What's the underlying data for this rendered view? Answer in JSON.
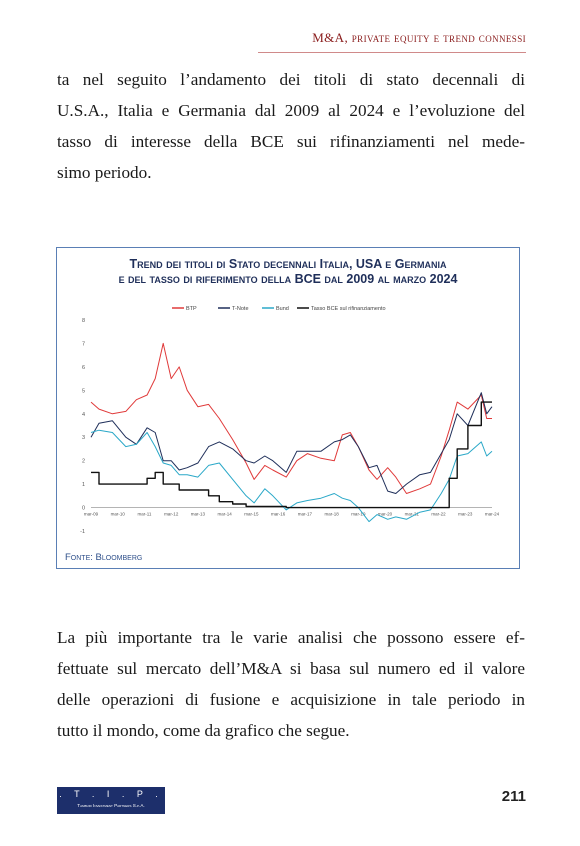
{
  "header": {
    "running_title": "M&A, private equity e trend connessi"
  },
  "paragraph_1": [
    "ta nel seguito l’andamento dei titoli di stato decennali di",
    "U.S.A., Italia e Germania dal 2009 al 2024 e l’evoluzione del",
    "tasso di interesse della BCE sui rifinanziamenti nel mede-",
    "simo periodo."
  ],
  "figure": {
    "title_line_1": "Trend dei titoli di Stato decennali Italia, USA e Germania",
    "title_line_2": "e del tasso di riferimento della BCE dal 2009 al marzo 2024",
    "source": "Fonte: Bloomberg"
  },
  "chart_data": {
    "type": "line",
    "x_tick_labels": [
      "mar-09",
      "mar-10",
      "mar-11",
      "mar-12",
      "mar-13",
      "mar-14",
      "mar-15",
      "mar-16",
      "mar-17",
      "mar-18",
      "mar-19",
      "mar-20",
      "mar-21",
      "mar-22",
      "mar-23",
      "mar-24"
    ],
    "y_tick_labels": [
      "-1",
      "0",
      "1",
      "2",
      "3",
      "4",
      "5",
      "6",
      "7",
      "8"
    ],
    "ylim": [
      -1,
      8
    ],
    "x": [
      2009.2,
      2009.5,
      2010.0,
      2010.5,
      2010.9,
      2011.3,
      2011.6,
      2011.9,
      2012.2,
      2012.5,
      2012.8,
      2013.2,
      2013.6,
      2014.0,
      2014.5,
      2015.0,
      2015.3,
      2015.7,
      2016.0,
      2016.5,
      2016.9,
      2017.3,
      2017.8,
      2018.3,
      2018.6,
      2018.9,
      2019.2,
      2019.6,
      2019.9,
      2020.3,
      2020.6,
      2021.0,
      2021.5,
      2021.9,
      2022.3,
      2022.6,
      2022.9,
      2023.3,
      2023.8,
      2024.0,
      2024.2
    ],
    "series": [
      {
        "name": "BTP",
        "color": "#e03a3a",
        "values": [
          4.5,
          4.2,
          4.0,
          4.1,
          4.6,
          4.8,
          5.5,
          7.0,
          5.5,
          6.0,
          5.0,
          4.3,
          4.4,
          3.8,
          2.9,
          1.9,
          1.2,
          1.8,
          1.6,
          1.3,
          2.0,
          2.3,
          2.1,
          2.0,
          3.1,
          3.2,
          2.6,
          1.6,
          1.2,
          1.7,
          1.3,
          0.6,
          0.8,
          1.0,
          2.2,
          3.3,
          4.5,
          4.2,
          4.8,
          3.8,
          3.8
        ]
      },
      {
        "name": "T-Note",
        "color": "#1f2f5a",
        "values": [
          3.0,
          3.6,
          3.7,
          3.0,
          2.7,
          3.4,
          3.2,
          2.0,
          2.0,
          1.6,
          1.7,
          1.9,
          2.6,
          2.8,
          2.5,
          2.0,
          1.9,
          2.2,
          2.0,
          1.5,
          2.4,
          2.4,
          2.4,
          2.8,
          2.9,
          3.1,
          2.6,
          1.7,
          1.8,
          0.7,
          0.6,
          1.0,
          1.4,
          1.5,
          2.3,
          2.9,
          4.0,
          3.5,
          4.9,
          4.0,
          4.3
        ]
      },
      {
        "name": "Bund",
        "color": "#2aa8c8",
        "values": [
          3.2,
          3.3,
          3.2,
          2.6,
          2.7,
          3.2,
          2.6,
          1.9,
          1.8,
          1.4,
          1.4,
          1.3,
          1.8,
          1.9,
          1.2,
          0.5,
          0.2,
          0.8,
          0.5,
          -0.1,
          0.2,
          0.3,
          0.4,
          0.6,
          0.4,
          0.3,
          0.0,
          -0.6,
          -0.3,
          -0.5,
          -0.4,
          -0.5,
          -0.2,
          -0.1,
          0.6,
          1.2,
          2.2,
          2.3,
          2.8,
          2.2,
          2.4
        ]
      },
      {
        "name": "Tasso BCE sul rifinanziamento",
        "color": "#111111",
        "values": [
          1.5,
          1.0,
          1.0,
          1.0,
          1.0,
          1.25,
          1.5,
          1.0,
          1.0,
          0.75,
          0.75,
          0.75,
          0.5,
          0.25,
          0.15,
          0.05,
          0.05,
          0.05,
          0.05,
          0.0,
          0.0,
          0.0,
          0.0,
          0.0,
          0.0,
          0.0,
          0.0,
          0.0,
          0.0,
          0.0,
          0.0,
          0.0,
          0.0,
          0.0,
          0.0,
          1.25,
          2.5,
          3.5,
          4.5,
          4.5,
          4.5
        ]
      }
    ]
  },
  "paragraph_2": [
    "La più importante tra le varie analisi che possono essere ef-",
    "fettuate sul mercato dell’M&A si basa sul numero ed il valore",
    "delle operazioni di fusione e acquisizione in tale periodo in",
    "tutto il mondo, come da grafico che segue."
  ],
  "footer": {
    "logo_mark": ". T . I . P .",
    "logo_subtitle": "Tamburi Investment Partners S.p.A.",
    "page_number": "211"
  }
}
